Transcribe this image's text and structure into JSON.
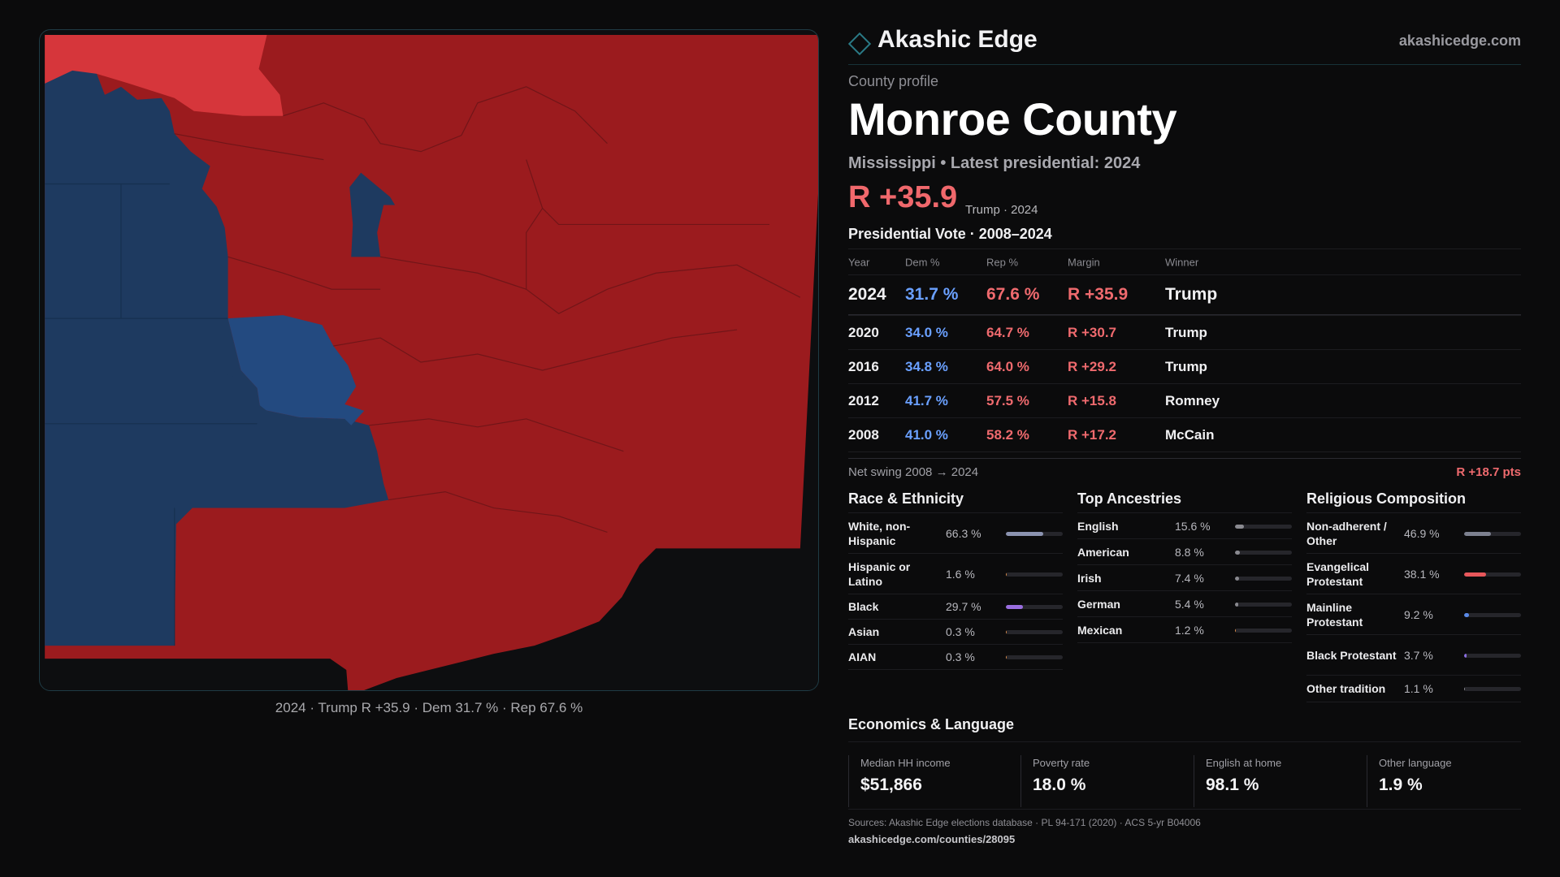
{
  "brand": {
    "name": "Akashic Edge",
    "site": "akashicedge.com"
  },
  "profile": {
    "kicker": "County profile",
    "county": "Monroe County",
    "subtitle": "Mississippi • Latest presidential: 2024",
    "margin": "R +35.9",
    "margin_note": "Trump · 2024"
  },
  "map": {
    "caption": "2024 · Trump R +35.9 · Dem 31.7 % · Rep 67.6 %"
  },
  "vote": {
    "title": "Presidential Vote · 2008–2024",
    "headers": {
      "year": "Year",
      "dem": "Dem %",
      "rep": "Rep %",
      "margin": "Margin",
      "winner": "Winner"
    },
    "rows": [
      {
        "year": "2024",
        "dem": "31.7 %",
        "rep": "67.6 %",
        "margin": "R +35.9",
        "winner": "Trump"
      },
      {
        "year": "2020",
        "dem": "34.0 %",
        "rep": "64.7 %",
        "margin": "R +30.7",
        "winner": "Trump"
      },
      {
        "year": "2016",
        "dem": "34.8 %",
        "rep": "64.0 %",
        "margin": "R +29.2",
        "winner": "Trump"
      },
      {
        "year": "2012",
        "dem": "41.7 %",
        "rep": "57.5 %",
        "margin": "R +15.8",
        "winner": "Romney"
      },
      {
        "year": "2008",
        "dem": "41.0 %",
        "rep": "58.2 %",
        "margin": "R +17.2",
        "winner": "McCain"
      }
    ],
    "swing_label": "Net swing 2008 → 2024",
    "swing_value": "R +18.7 pts"
  },
  "race": {
    "title": "Race & Ethnicity",
    "items": [
      {
        "label": "White, non-Hispanic",
        "value": "66.3 %",
        "pct": 66.3,
        "color": "#8b93b0"
      },
      {
        "label": "Hispanic or Latino",
        "value": "1.6 %",
        "pct": 1.6,
        "color": "#d88a4a"
      },
      {
        "label": "Black",
        "value": "29.7 %",
        "pct": 29.7,
        "color": "#9a6ee0"
      },
      {
        "label": "Asian",
        "value": "0.3 %",
        "pct": 0.3,
        "color": "#d88a4a"
      },
      {
        "label": "AIAN",
        "value": "0.3 %",
        "pct": 0.3,
        "color": "#d88a4a"
      }
    ]
  },
  "ancestry": {
    "title": "Top Ancestries",
    "items": [
      {
        "label": "English",
        "value": "15.6 %",
        "pct": 15.6,
        "color": "#8a8a90"
      },
      {
        "label": "American",
        "value": "8.8 %",
        "pct": 8.8,
        "color": "#8a8a90"
      },
      {
        "label": "Irish",
        "value": "7.4 %",
        "pct": 7.4,
        "color": "#8a8a90"
      },
      {
        "label": "German",
        "value": "5.4 %",
        "pct": 5.4,
        "color": "#8a8a90"
      },
      {
        "label": "Mexican",
        "value": "1.2 %",
        "pct": 1.2,
        "color": "#d88a4a"
      }
    ]
  },
  "religion": {
    "title": "Religious Composition",
    "items": [
      {
        "label": "Non-adherent / Other",
        "value": "46.9 %",
        "pct": 46.9,
        "color": "#7d8190"
      },
      {
        "label": "Evangelical Protestant",
        "value": "38.1 %",
        "pct": 38.1,
        "color": "#e8575b"
      },
      {
        "label": "Mainline Protestant",
        "value": "9.2 %",
        "pct": 9.2,
        "color": "#5a8ae8"
      },
      {
        "label": "Black Protestant",
        "value": "3.7 %",
        "pct": 3.7,
        "color": "#8a6ee0"
      },
      {
        "label": "Other tradition",
        "value": "1.1 %",
        "pct": 1.1,
        "color": "#8a8a90"
      }
    ]
  },
  "economics": {
    "title": "Economics & Language",
    "items": [
      {
        "label": "Median HH income",
        "value": "$51,866"
      },
      {
        "label": "Poverty rate",
        "value": "18.0 %"
      },
      {
        "label": "English at home",
        "value": "98.1 %"
      },
      {
        "label": "Other language",
        "value": "1.9 %"
      }
    ]
  },
  "footer": {
    "sources": "Sources: Akashic Edge elections database · PL 94-171 (2020) · ACS 5-yr B04006",
    "link": "akashicedge.com/counties/28095"
  },
  "colors": {
    "rep_dark": "#9b1b1e",
    "rep_light": "#d6363b",
    "dem_dark": "#1e3a60",
    "dem_mid": "#234a80"
  }
}
